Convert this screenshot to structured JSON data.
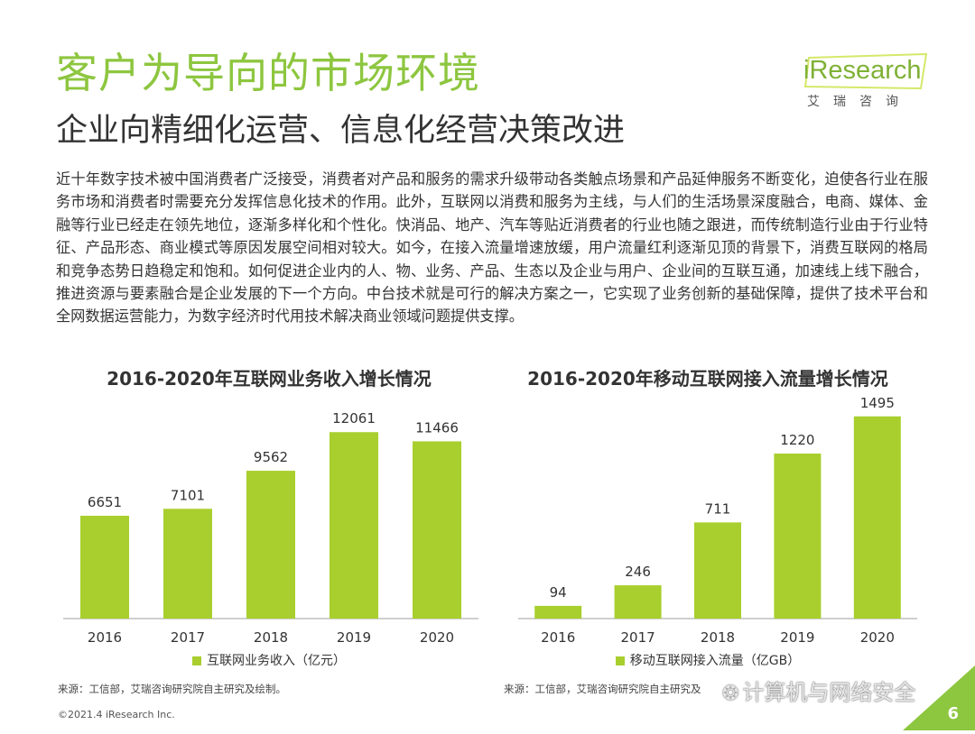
{
  "header": {
    "title": "客户为导向的市场环境",
    "subtitle": "企业向精细化运营、信息化经营决策改进"
  },
  "logo": {
    "word": "iResearch",
    "cn": "艾瑞咨询"
  },
  "body_text": "近十年数字技术被中国消费者广泛接受，消费者对产品和服务的需求升级带动各类触点场景和产品延伸服务不断变化，迫使各行业在服务市场和消费者时需要充分发挥信息化技术的作用。此外，互联网以消费和服务为主线，与人们的生活场景深度融合，电商、媒体、金融等行业已经走在领先地位，逐渐多样化和个性化。快消品、地产、汽车等贴近消费者的行业也随之跟进，而传统制造行业由于行业特征、产品形态、商业模式等原因发展空间相对较大。如今，在接入流量增速放缓，用户流量红利逐渐见顶的背景下，消费互联网的格局和竞争态势日趋稳定和饱和。如何促进企业内的人、物、业务、产品、生态以及企业与用户、企业间的互联互通，加速线上线下融合，推进资源与要素融合是企业发展的下一个方向。中台技术就是可行的解决方案之一，它实现了业务创新的基础保障，提供了技术平台和全网数据运营能力，为数字经济时代用技术解决商业领域问题提供支撑。",
  "chart_data": [
    {
      "type": "bar",
      "title": "2016-2020年互联网业务收入增长情况",
      "categories": [
        "2016",
        "2017",
        "2018",
        "2019",
        "2020"
      ],
      "series": [
        {
          "name": "互联网业务收入（亿元）",
          "values": [
            6651,
            7101,
            9562,
            12061,
            11466
          ]
        }
      ],
      "ylim": [
        0,
        14000
      ],
      "color": "#a8cf2d",
      "grid": false,
      "legend": "bottom"
    },
    {
      "type": "bar",
      "title": "2016-2020年移动互联网接入流量增长情况",
      "categories": [
        "2016",
        "2017",
        "2018",
        "2019",
        "2020"
      ],
      "series": [
        {
          "name": "移动互联网接入流量（亿GB）",
          "values": [
            94,
            246,
            711,
            1220,
            1495
          ]
        }
      ],
      "ylim": [
        0,
        1600
      ],
      "color": "#a8cf2d",
      "grid": false,
      "legend": "bottom"
    }
  ],
  "sources": {
    "left": "来源：工信部，艾瑞咨询研究院自主研究及绘制。",
    "right": "来源：工信部，艾瑞咨询研究院自主研究及"
  },
  "footer": {
    "copyright": "©2021.4 iResearch Inc.",
    "page_number": "6"
  },
  "watermark": {
    "text": "计算机与网络安全",
    "icon": "wechat-icon"
  },
  "colors": {
    "accent": "#8dc63f",
    "bar": "#a8cf2d"
  }
}
